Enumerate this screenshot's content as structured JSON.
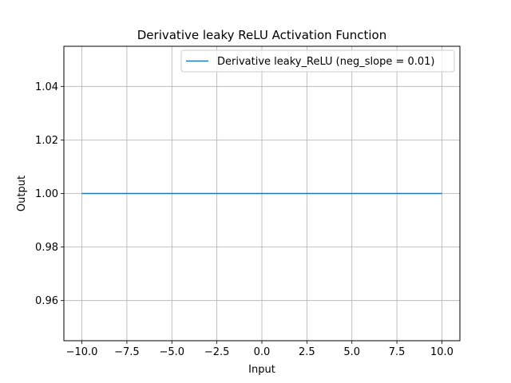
{
  "chart_data": {
    "type": "line",
    "title": "Derivative leaky ReLU Activation Function",
    "xlabel": "Input",
    "ylabel": "Output",
    "xlim": [
      -11.0,
      11.0
    ],
    "ylim": [
      0.945,
      1.055
    ],
    "xticks": [
      -10.0,
      -7.5,
      -5.0,
      -2.5,
      0.0,
      2.5,
      5.0,
      7.5,
      10.0
    ],
    "xtick_labels": [
      "−10.0",
      "−7.5",
      "−5.0",
      "−2.5",
      "0.0",
      "2.5",
      "5.0",
      "7.5",
      "10.0"
    ],
    "yticks": [
      0.96,
      0.98,
      1.0,
      1.02,
      1.04
    ],
    "ytick_labels": [
      "0.96",
      "0.98",
      "1.00",
      "1.02",
      "1.04"
    ],
    "grid": true,
    "legend_position": "upper-right",
    "series": [
      {
        "name": "Derivative leaky_ReLU (neg_slope = 0.01)",
        "color": "#1f77b4",
        "x": [
          -10.0,
          10.0
        ],
        "y": [
          1.0,
          1.0
        ]
      }
    ]
  }
}
